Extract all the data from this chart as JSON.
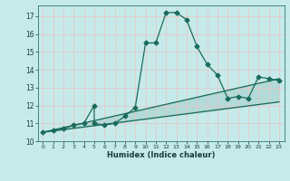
{
  "xlabel": "Humidex (Indice chaleur)",
  "background_color": "#c6eaea",
  "grid_color": "#e8c8c8",
  "line_color": "#1a6b5a",
  "xlim": [
    -0.5,
    23.5
  ],
  "ylim": [
    10.0,
    17.6
  ],
  "yticks": [
    10,
    11,
    12,
    13,
    14,
    15,
    16,
    17
  ],
  "xticks": [
    0,
    1,
    2,
    3,
    4,
    5,
    6,
    7,
    8,
    9,
    10,
    11,
    12,
    13,
    14,
    15,
    16,
    17,
    18,
    19,
    20,
    21,
    22,
    23
  ],
  "series1_x": [
    0,
    1,
    2,
    3,
    4,
    5,
    5,
    6,
    7,
    8,
    9,
    10,
    11,
    12,
    13,
    14,
    15,
    16,
    17,
    18,
    19,
    20,
    21,
    22,
    23
  ],
  "series1_y": [
    10.5,
    10.6,
    10.7,
    10.9,
    11.0,
    12.0,
    11.0,
    10.9,
    11.0,
    11.4,
    11.9,
    15.5,
    15.5,
    17.2,
    17.2,
    16.8,
    15.3,
    14.3,
    13.7,
    12.4,
    12.5,
    12.4,
    13.6,
    13.5,
    13.4
  ],
  "series2_x": [
    0,
    23
  ],
  "series2_y": [
    10.5,
    13.5
  ],
  "series3_x": [
    0,
    23
  ],
  "series3_y": [
    10.5,
    12.2
  ],
  "marker_size": 2.5,
  "line_width": 0.9
}
